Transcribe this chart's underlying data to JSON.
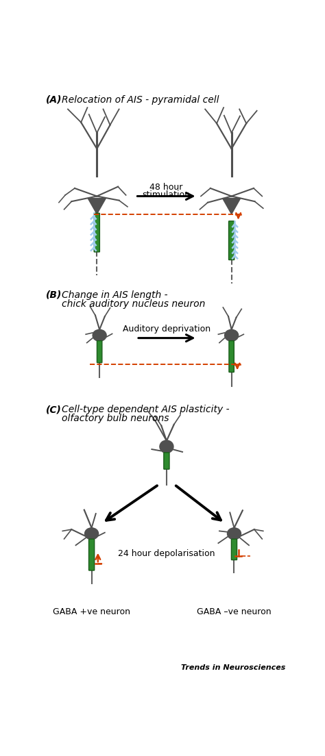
{
  "panel_A_label": "(A)",
  "panel_B_label": "(B)",
  "panel_C_label": "(C)",
  "panel_A_title": "Relocation of AIS - pyramidal cell",
  "panel_B_title_1": "Change in AIS length -",
  "panel_B_title_2": "chick auditory nucleus neuron",
  "panel_C_title_1": "Cell-type dependent AIS plasticity -",
  "panel_C_title_2": "olfactory bulb neurons",
  "arrow_A_text_1": "48 hour",
  "arrow_A_text_2": "stimulation",
  "arrow_B_text": "Auditory deprivation",
  "arrow_C_text": "24 hour depolarisation",
  "gaba_pos_label": "GABA +ve neuron",
  "gaba_neg_label": "GABA –ve neuron",
  "trends_label": "Trends in Neurosciences",
  "soma_color": "#505050",
  "ais_green": "#2e8b2e",
  "ais_border": "#1a5c1a",
  "ch_color": "#a0ccee",
  "red_color": "#d44000",
  "axon_color": "#606060",
  "bg": "#ffffff",
  "txt": "#000000"
}
